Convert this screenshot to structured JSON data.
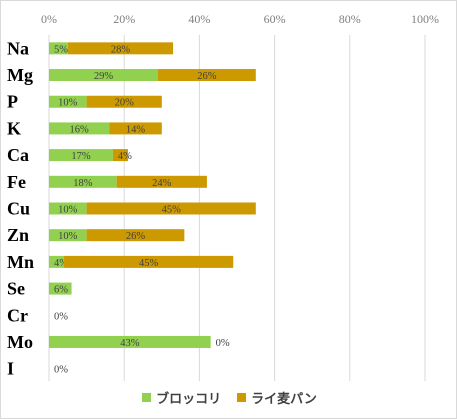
{
  "chart_data": {
    "type": "bar",
    "orientation": "horizontal",
    "stacked": true,
    "categories": [
      "Na",
      "Mg",
      "P",
      "K",
      "Ca",
      "Fe",
      "Cu",
      "Zn",
      "Mn",
      "Se",
      "Cr",
      "Mo",
      "I"
    ],
    "series": [
      {
        "name": "ブロッコリ",
        "color": "#92d050",
        "values": [
          5,
          29,
          10,
          16,
          17,
          18,
          10,
          10,
          4,
          6,
          0,
          43,
          0
        ],
        "labels": [
          "5%",
          "29%",
          "10%",
          "16%",
          "17%",
          "18%",
          "10%",
          "10%",
          "4%",
          "6%",
          "0%",
          "43%",
          "0%"
        ]
      },
      {
        "name": "ライ麦パン",
        "color": "#cc9900",
        "values": [
          28,
          26,
          20,
          14,
          4,
          24,
          45,
          26,
          45,
          0,
          0,
          0,
          0
        ],
        "labels": [
          "28%",
          "26%",
          "20%",
          "14%",
          "4%",
          "24%",
          "45%",
          "26%",
          "45%",
          "",
          "",
          "0%",
          ""
        ]
      }
    ],
    "xlim": [
      0,
      100
    ],
    "xticks": [
      0,
      20,
      40,
      60,
      80,
      100
    ],
    "xtick_labels": [
      "0%",
      "20%",
      "40%",
      "60%",
      "80%",
      "100%"
    ],
    "xaxis_position": "top",
    "grid": true,
    "legend_position": "bottom"
  }
}
